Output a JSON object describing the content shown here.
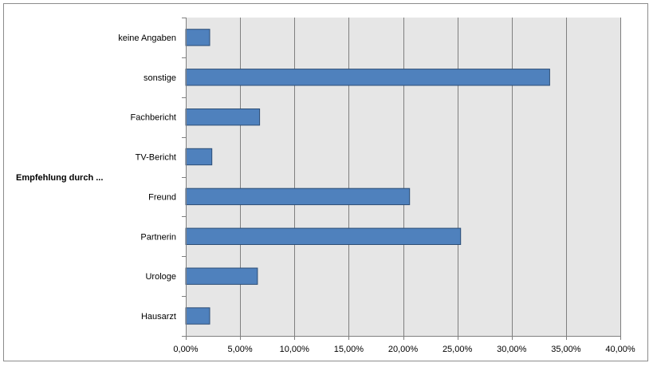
{
  "chart_data": {
    "type": "bar",
    "orientation": "horizontal",
    "ylabel": "Empfehlung durch ...",
    "categories": [
      "Hausarzt",
      "Urologe",
      "Partnerin",
      "Freund",
      "TV-Bericht",
      "Fachbericht",
      "sonstige",
      "keine Angaben"
    ],
    "values": [
      2.2,
      6.6,
      25.3,
      20.6,
      2.4,
      6.8,
      33.5,
      2.2
    ],
    "xlim": [
      0,
      40
    ],
    "xticks": [
      0,
      5,
      10,
      15,
      20,
      25,
      30,
      35,
      40
    ],
    "xtick_labels": [
      "0,00%",
      "5,00%",
      "10,00%",
      "15,00%",
      "20,00%",
      "25,00%",
      "30,00%",
      "35,00%",
      "40,00%"
    ],
    "grid": "vertical",
    "legend": "none",
    "colors": {
      "bar_fill": "#4f81bd",
      "bar_stroke": "#2c4d75",
      "plot_background": "#e6e6e6",
      "gridline": "#7f7f7f"
    }
  }
}
